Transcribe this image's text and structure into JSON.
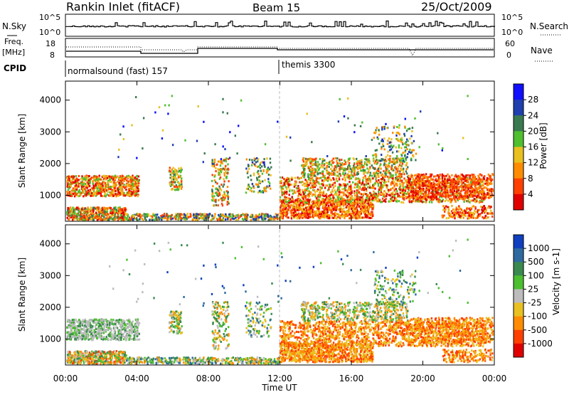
{
  "header": {
    "title": "Rankin Inlet (fitACF)",
    "beam": "Beam 15",
    "date": "25/Oct/2009"
  },
  "strip_panels": {
    "nsky_label": "N.Sky",
    "nsky_ticks": [
      "10^5",
      "10^0"
    ],
    "nsearch_label": "N.Search",
    "nsearch_ticks": [
      "10^5",
      "10^0"
    ],
    "freq_label_1": "Freq.",
    "freq_label_2": "[MHz]",
    "freq_ticks": [
      "18",
      "8"
    ],
    "nave_label": "Nave",
    "nave_ticks": [
      "60",
      "0"
    ],
    "cpid_label": "CPID",
    "cpid_modes": [
      "normalsound (fast) 157",
      "themis 3300"
    ]
  },
  "chart_data": [
    {
      "type": "heatmap",
      "ylabel": "Slant Range [km]",
      "xlabel": "Time UT",
      "x_ticks": [
        "00:00",
        "04:00",
        "08:00",
        "12:00",
        "16:00",
        "20:00",
        "00:00"
      ],
      "y_ticks": [
        "1000",
        "2000",
        "3000",
        "4000"
      ],
      "ylim": [
        180,
        4600
      ],
      "colorbar": {
        "label": "Power [dB]",
        "ticks": [
          "4",
          "8",
          "12",
          "16",
          "20",
          "24",
          "28"
        ],
        "colors": [
          "#1010ff",
          "#2040b0",
          "#3a7a50",
          "#50c030",
          "#e8c020",
          "#ff8c00",
          "#ff4000",
          "#e00000"
        ]
      }
    },
    {
      "type": "heatmap",
      "ylabel": "Slant Range [km]",
      "xlabel": "Time UT",
      "x_ticks": [
        "00:00",
        "04:00",
        "08:00",
        "12:00",
        "16:00",
        "20:00",
        "00:00"
      ],
      "y_ticks": [
        "1000",
        "2000",
        "3000",
        "4000"
      ],
      "ylim": [
        180,
        4600
      ],
      "colorbar": {
        "label": "Velocity [m s-1]",
        "ticks": [
          "1000",
          "500",
          "100",
          "25",
          "-25",
          "-100",
          "-500",
          "-1000"
        ],
        "colors": [
          "#1040c0",
          "#2e6aa0",
          "#3a8a50",
          "#4cbf30",
          "#bcbcbc",
          "#e8c020",
          "#ff8c00",
          "#ff4000",
          "#e00000"
        ]
      }
    }
  ]
}
